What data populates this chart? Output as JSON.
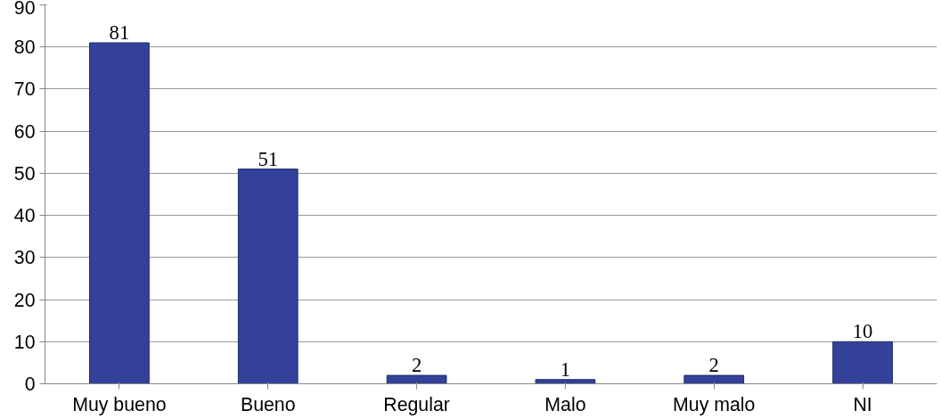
{
  "chart_data": {
    "type": "bar",
    "categories": [
      "Muy bueno",
      "Bueno",
      "Regular",
      "Malo",
      "Muy malo",
      "NI"
    ],
    "values": [
      81,
      51,
      2,
      1,
      2,
      10
    ],
    "color": "#33419a",
    "ylim": [
      0,
      90
    ],
    "yticks": [
      0,
      10,
      20,
      30,
      40,
      50,
      60,
      70,
      80,
      90
    ],
    "grid": "y",
    "data_labels": true
  }
}
